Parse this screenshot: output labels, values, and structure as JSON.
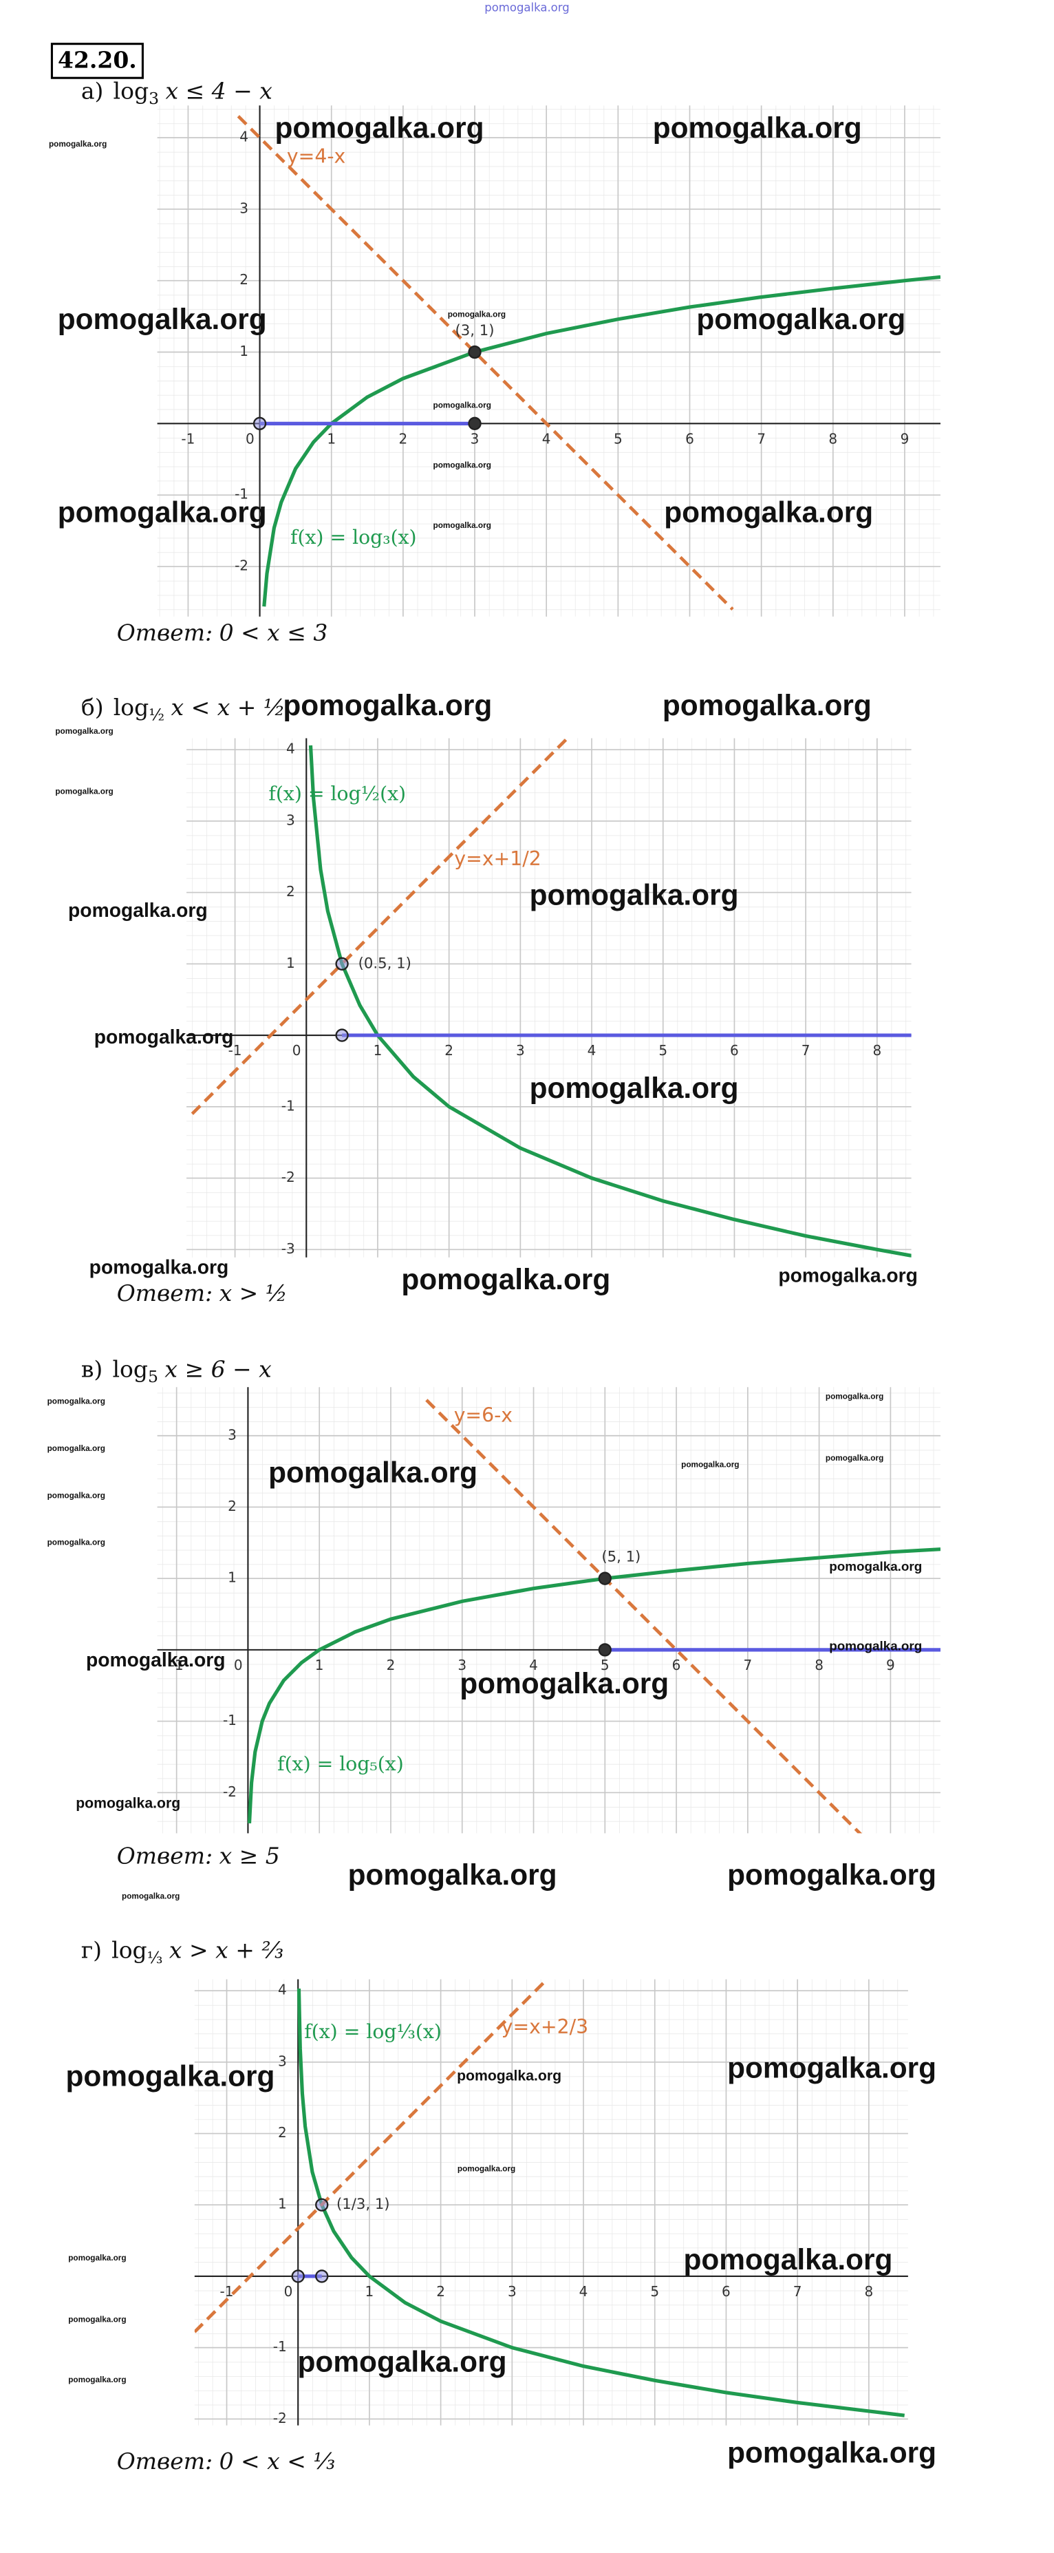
{
  "header": {
    "number": "42.20.",
    "site": "pomogalka.org"
  },
  "problems": [
    {
      "label": "а)",
      "log": "log",
      "base": "3",
      "rhs": "x ≤ 4 − x",
      "answer_label": "Ответ:",
      "answer": "0 < x ≤ 3",
      "graph": {
        "xlim": [
          -1.43,
          9.5
        ],
        "ylim": [
          -2.7,
          4.45
        ],
        "xticks": [
          -1,
          0,
          1,
          2,
          3,
          4,
          5,
          6,
          7,
          8,
          9
        ],
        "yticks": [
          -2,
          -1,
          1,
          2,
          3,
          4
        ],
        "series": [
          {
            "label": "f(x) = log₃(x)",
            "color": "#1f9a4f",
            "dash": false,
            "x": [
              0.06,
              0.1,
              0.2,
              0.3,
              0.5,
              0.75,
              1,
              1.5,
              2,
              3,
              4,
              5,
              6,
              7,
              8,
              9,
              9.5
            ],
            "y": [
              -2.56,
              -2.1,
              -1.46,
              -1.1,
              -0.63,
              -0.26,
              0,
              0.37,
              0.63,
              1,
              1.26,
              1.46,
              1.63,
              1.77,
              1.89,
              2,
              2.05
            ]
          },
          {
            "label": "y=4-x",
            "color": "#d9773c",
            "dash": true,
            "x": [
              -0.3,
              6.6
            ],
            "y": [
              4.3,
              -2.6
            ]
          },
          {
            "color": "#5a5ae0",
            "dash": false,
            "x": [
              0,
              3
            ],
            "y": [
              0,
              0
            ]
          }
        ],
        "points": [
          {
            "x": 3,
            "y": 1,
            "label": "(3, 1)",
            "filled": true
          },
          {
            "x": 0,
            "y": 0,
            "filled": false
          },
          {
            "x": 3,
            "y": 0,
            "filled": true
          }
        ]
      }
    },
    {
      "label": "б)",
      "log": "log",
      "base": "½",
      "rhs": "x < x + ½",
      "answer_label": "Ответ:",
      "answer": "x > ½",
      "graph": {
        "xlim": [
          -1.68,
          8.48
        ],
        "ylim": [
          -3.11,
          4.16
        ],
        "xticks": [
          -1,
          0,
          1,
          2,
          3,
          4,
          5,
          6,
          7,
          8
        ],
        "yticks": [
          -3,
          -2,
          -1,
          1,
          2,
          3,
          4
        ],
        "series": [
          {
            "label": "f(x) = log½(x)",
            "color": "#1f9a4f",
            "dash": false,
            "x": [
              0.06,
              0.1,
              0.2,
              0.3,
              0.5,
              0.75,
              1,
              1.5,
              2,
              3,
              4,
              5,
              6,
              7,
              8,
              8.5
            ],
            "y": [
              4.06,
              3.32,
              2.32,
              1.74,
              1,
              0.42,
              0,
              -0.58,
              -1,
              -1.58,
              -2,
              -2.32,
              -2.58,
              -2.81,
              -3,
              -3.09
            ]
          },
          {
            "label": "y=x+1/2",
            "color": "#d9773c",
            "dash": true,
            "x": [
              -1.6,
              3.7
            ],
            "y": [
              -1.1,
              4.2
            ]
          },
          {
            "color": "#5a5ae0",
            "dash": false,
            "x": [
              0.5,
              8.5
            ],
            "y": [
              0,
              0
            ]
          }
        ],
        "points": [
          {
            "x": 0.5,
            "y": 1,
            "label": "(0.5, 1)",
            "filled": false
          },
          {
            "x": 0.5,
            "y": 0,
            "filled": false
          }
        ]
      }
    },
    {
      "label": "в)",
      "log": "log",
      "base": "5",
      "rhs": "x ≥ 6 − x",
      "answer_label": "Ответ:",
      "answer": "x ≥ 5",
      "graph": {
        "xlim": [
          -1.27,
          9.7
        ],
        "ylim": [
          -2.57,
          3.68
        ],
        "xticks": [
          -1,
          0,
          1,
          2,
          3,
          4,
          5,
          6,
          7,
          8,
          9
        ],
        "yticks": [
          -2,
          -1,
          1,
          2,
          3
        ],
        "series": [
          {
            "label": "f(x) = log₅(x)",
            "color": "#1f9a4f",
            "dash": false,
            "x": [
              0.02,
              0.05,
              0.1,
              0.2,
              0.3,
              0.5,
              0.75,
              1,
              1.5,
              2,
              3,
              4,
              5,
              6,
              7,
              8,
              9,
              9.7
            ],
            "y": [
              -2.43,
              -1.86,
              -1.43,
              -1,
              -0.75,
              -0.43,
              -0.18,
              0,
              0.25,
              0.43,
              0.68,
              0.86,
              1,
              1.11,
              1.21,
              1.29,
              1.37,
              1.41
            ]
          },
          {
            "label": "y=6-x",
            "color": "#d9773c",
            "dash": true,
            "x": [
              2.5,
              8.6
            ],
            "y": [
              3.5,
              -2.6
            ]
          },
          {
            "color": "#5a5ae0",
            "dash": false,
            "x": [
              5,
              9.7
            ],
            "y": [
              0,
              0
            ]
          }
        ],
        "points": [
          {
            "x": 5,
            "y": 1,
            "label": "(5, 1)",
            "filled": true
          },
          {
            "x": 5,
            "y": 0,
            "filled": true
          }
        ]
      }
    },
    {
      "label": "г)",
      "log": "log",
      "base": "⅓",
      "rhs": "x > x + ⅔",
      "answer_label": "Ответ:",
      "answer": "0 < x < ⅓",
      "graph": {
        "xlim": [
          -1.45,
          8.55
        ],
        "ylim": [
          -2.09,
          4.16
        ],
        "xticks": [
          -1,
          0,
          1,
          2,
          3,
          4,
          5,
          6,
          7,
          8
        ],
        "yticks": [
          -2,
          -1,
          1,
          2,
          3,
          4
        ],
        "series": [
          {
            "label": "f(x) = log⅓(x)",
            "color": "#1f9a4f",
            "dash": false,
            "x": [
              0.012,
              0.03,
              0.06,
              0.1,
              0.2,
              0.333,
              0.5,
              0.75,
              1,
              1.5,
              2,
              3,
              4,
              5,
              6,
              7,
              8,
              8.5
            ],
            "y": [
              4.03,
              3.19,
              2.56,
              2.1,
              1.46,
              1,
              0.63,
              0.26,
              0,
              -0.37,
              -0.63,
              -1,
              -1.26,
              -1.46,
              -1.63,
              -1.77,
              -1.89,
              -1.95
            ]
          },
          {
            "label": "y=x+2/3",
            "color": "#d9773c",
            "dash": true,
            "x": [
              -1.45,
              3.5
            ],
            "y": [
              -0.78,
              4.17
            ]
          },
          {
            "color": "#5a5ae0",
            "dash": false,
            "x": [
              0,
              0.333
            ],
            "y": [
              0,
              0
            ]
          }
        ],
        "points": [
          {
            "x": 0.333,
            "y": 1,
            "label": "(1/3, 1)",
            "filled": false
          },
          {
            "x": 0,
            "y": 0,
            "filled": false
          },
          {
            "x": 0.333,
            "y": 0,
            "filled": false
          }
        ]
      }
    }
  ],
  "watermarks": [
    "pomogalka.org",
    "pomogalka.org",
    "pomogalka.org",
    "pomogalka.org",
    "pomogalka.org",
    "pomogalka.org",
    "pomogalka.org",
    "pomogalka.org",
    "pomogalka.org",
    "pomogalka.org",
    "pomogalka.org",
    "pomogalka.org",
    "pomogalka.org",
    "pomogalka.org",
    "pomogalka.org",
    "pomogalka.org",
    "pomogalka.org",
    "pomogalka.org",
    "pomogalka.org",
    "pomogalka.org",
    "pomogalka.org",
    "pomogalka.org",
    "pomogalka.org",
    "pomogalka.org",
    "pomogalka.org",
    "pomogalka.org",
    "pomogalka.org",
    "pomogalka.org",
    "pomogalka.org",
    "pomogalka.org",
    "pomogalka.org",
    "pomogalka.org",
    "pomogalka.org",
    "pomogalka.org",
    "pomogalka.org",
    "pomogalka.org",
    "pomogalka.org",
    "pomogalka.org",
    "pomogalka.org",
    "pomogalka.org",
    "pomogalka.org",
    "pomogalka.org",
    "pomogalka.org",
    "pomogalka.org",
    "pomogalka.org",
    "pomogalka.org",
    "pomogalka.org",
    "pomogalka.org"
  ]
}
